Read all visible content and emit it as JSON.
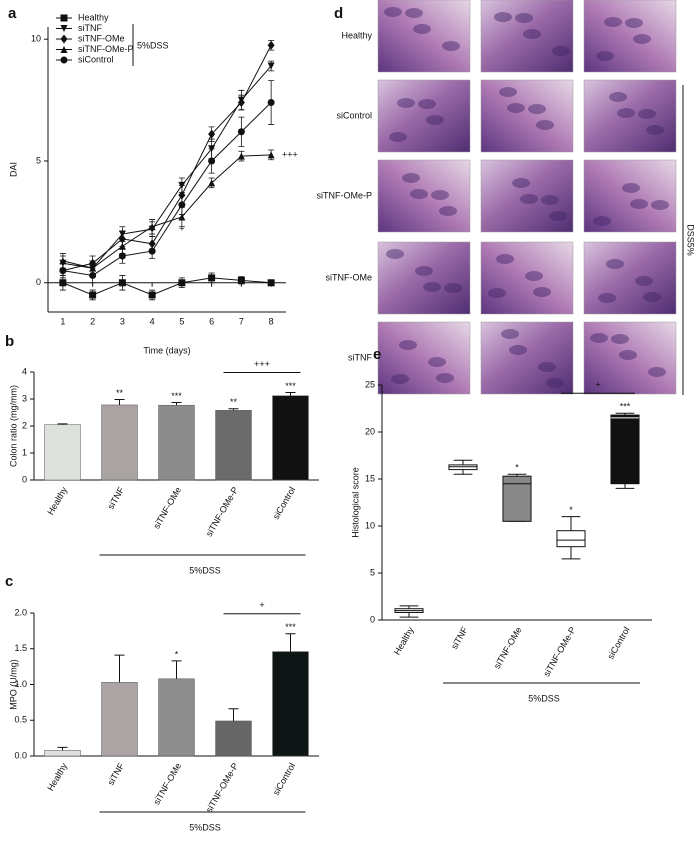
{
  "chart_data": [
    {
      "type": "line",
      "panel": "a",
      "xlabel": "Time (days)",
      "ylabel": "DAI",
      "x": [
        1,
        2,
        3,
        4,
        5,
        6,
        7,
        8
      ],
      "xlim": [
        0.5,
        8.5
      ],
      "xticks": [
        1,
        2,
        3,
        4,
        5,
        6,
        7,
        8
      ],
      "ylim": [
        -1.2,
        10.5
      ],
      "yticks": [
        0,
        5,
        10
      ],
      "legend": "top-left",
      "legend_group_label": "5%DSS",
      "annotations": [
        "+++",
        "+"
      ],
      "series": [
        {
          "name": "Healthy",
          "color": "#111111",
          "marker": "square",
          "values": [
            0,
            -0.5,
            0,
            -0.5,
            0,
            0.2,
            0.1,
            0
          ],
          "errors": [
            0.3,
            0.2,
            0.3,
            0.2,
            0.2,
            0.2,
            0.15,
            0.1
          ]
        },
        {
          "name": "siTNF",
          "color": "#111111",
          "marker": "triangle-down",
          "values": [
            0.8,
            0.6,
            2.0,
            2.2,
            4.0,
            5.5,
            7.5,
            8.9
          ],
          "errors": [
            0.3,
            0.3,
            0.3,
            0.3,
            0.3,
            0.4,
            0.4,
            0.2
          ]
        },
        {
          "name": "siTNF-OMe",
          "color": "#111111",
          "marker": "diamond",
          "values": [
            0.5,
            0.8,
            1.8,
            1.6,
            3.6,
            6.1,
            7.4,
            9.75
          ],
          "errors": [
            0.3,
            0.3,
            0.3,
            0.3,
            0.4,
            0.3,
            0.3,
            0.2
          ]
        },
        {
          "name": "siTNF-OMe-P",
          "color": "#111111",
          "marker": "triangle-up",
          "values": [
            0.9,
            0.6,
            1.5,
            2.3,
            2.7,
            4.1,
            5.2,
            5.25
          ],
          "errors": [
            0.3,
            0.3,
            0.3,
            0.3,
            0.4,
            0.2,
            0.2,
            0.2
          ]
        },
        {
          "name": "siControl",
          "color": "#111111",
          "marker": "circle",
          "values": [
            0.5,
            0.3,
            1.1,
            1.3,
            3.2,
            5.0,
            6.2,
            7.4
          ],
          "errors": [
            0.3,
            0.3,
            0.3,
            0.3,
            0.4,
            0.5,
            0.6,
            0.9
          ]
        }
      ]
    },
    {
      "type": "bar",
      "panel": "b",
      "ylabel": "Colon ratio (mg/mm)",
      "categories": [
        "Healthy",
        "siTNF",
        "siTNF-OMe",
        "siTNF-OMe-P",
        "siControl"
      ],
      "values": [
        2.05,
        2.78,
        2.77,
        2.58,
        3.12
      ],
      "errors": [
        0.03,
        0.2,
        0.1,
        0.06,
        0.12
      ],
      "colors": [
        "#dde3dc",
        "#aaa3a3",
        "#8c8c8c",
        "#6b6b6b",
        "#111111"
      ],
      "significance": [
        null,
        "**",
        "***",
        "**",
        "***"
      ],
      "bracket_label": "+++",
      "group_label": "5%DSS",
      "ylim": [
        0,
        4
      ],
      "yticks": [
        0,
        1,
        2,
        3,
        4
      ]
    },
    {
      "type": "bar",
      "panel": "c",
      "ylabel": "MPO (U/mg)",
      "categories": [
        "Healthy",
        "siTNF",
        "siTNF-OMe",
        "siTNF-OMe-P",
        "siControl"
      ],
      "values": [
        0.08,
        1.03,
        1.08,
        0.49,
        1.46
      ],
      "errors": [
        0.04,
        0.38,
        0.25,
        0.17,
        0.25
      ],
      "colors": [
        "#e0e0e0",
        "#aca5a5",
        "#8d8d8d",
        "#666666",
        "#0f1414"
      ],
      "significance": [
        null,
        null,
        "*",
        null,
        "***"
      ],
      "bracket_label": "+",
      "group_label": "5%DSS",
      "ylim": [
        0,
        2
      ],
      "yticks": [
        {
          "value": 0,
          "label": "0.0"
        },
        {
          "value": 0.5,
          "label": "0.5"
        },
        {
          "value": 1,
          "label": "1.0"
        },
        {
          "value": 1.5,
          "label": "1.5"
        },
        {
          "value": 2,
          "label": "2.0"
        }
      ]
    },
    {
      "type": "box",
      "panel": "e",
      "ylabel": "Histological score",
      "categories": [
        "Healthy",
        "siTNF",
        "siTNF-OMe",
        "siTNF-OMe-P",
        "siControl"
      ],
      "min": [
        0.3,
        15.5,
        10.5,
        6.5,
        14
      ],
      "q1": [
        0.8,
        16,
        10.5,
        7.8,
        14.5
      ],
      "median": [
        1,
        16.3,
        14.5,
        8.5,
        21.5
      ],
      "q3": [
        1.2,
        16.5,
        15.3,
        9.5,
        21.8
      ],
      "max": [
        1.5,
        17,
        15.5,
        11,
        22
      ],
      "colors": [
        "#ffffff",
        "#ffffff",
        "#888888",
        "#ffffff",
        "#111111"
      ],
      "significance": [
        null,
        null,
        "*",
        "*",
        "***"
      ],
      "bracket_label": "+",
      "group_label": "5%DSS",
      "ylim": [
        0,
        25
      ],
      "yticks": [
        0,
        5,
        10,
        15,
        20,
        25
      ]
    }
  ],
  "histology": {
    "panel": "d",
    "rows": [
      "Healthy",
      "siControl",
      "siTNF-OMe-P",
      "siTNF-OMe",
      "siTNF"
    ],
    "group_label": "DSS5%"
  }
}
